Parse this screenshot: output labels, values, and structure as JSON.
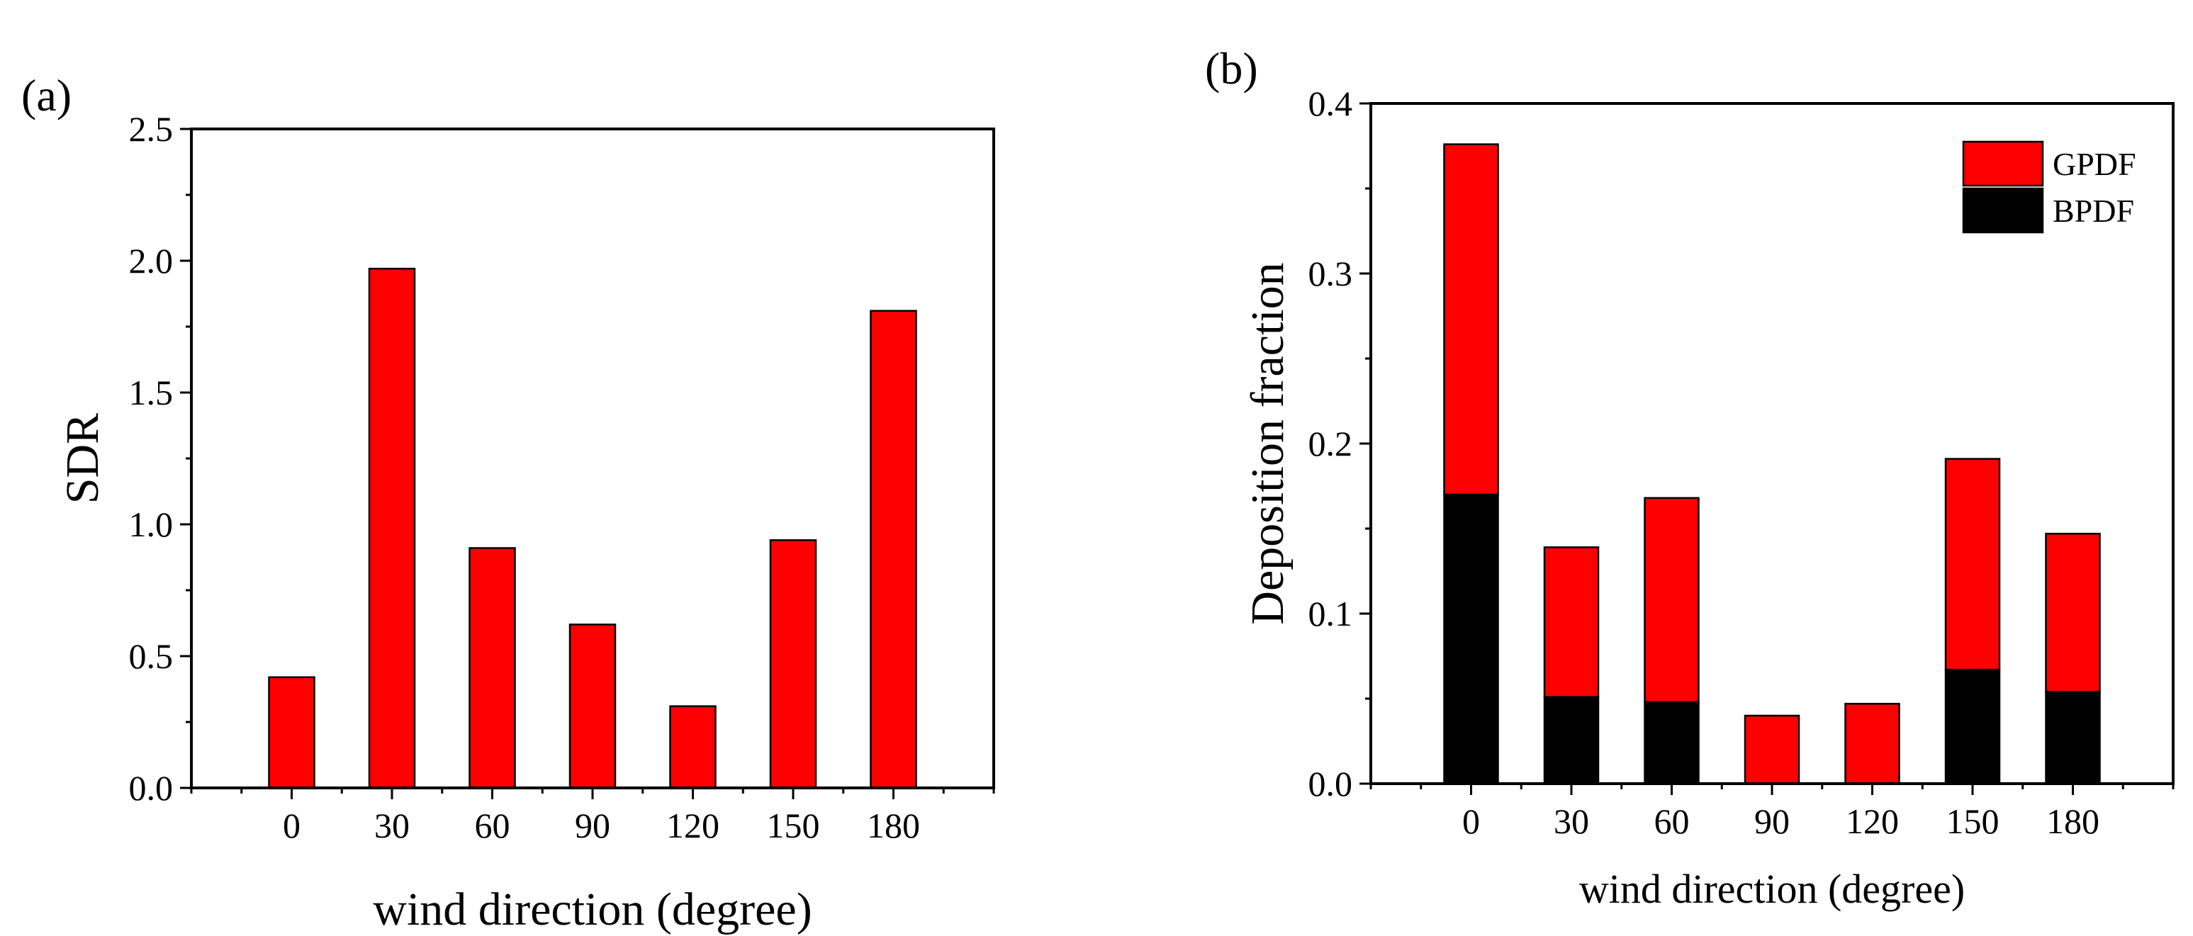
{
  "chart_data": [
    {
      "panel": "(a)",
      "type": "bar",
      "title": "",
      "xlabel": "wind direction (degree)",
      "ylabel": "SDR",
      "categories": [
        "0",
        "30",
        "60",
        "90",
        "120",
        "150",
        "180"
      ],
      "values": [
        0.42,
        1.97,
        0.91,
        0.62,
        0.31,
        0.94,
        1.81
      ],
      "ylim": [
        0,
        2.5
      ],
      "yticks": [
        "0.0",
        "0.5",
        "1.0",
        "1.5",
        "2.0",
        "2.5"
      ],
      "color": "#ff0000",
      "grid": false
    },
    {
      "panel": "(b)",
      "type": "bar",
      "stacked": true,
      "title": "",
      "xlabel": "wind direction (degree)",
      "ylabel": "Deposition fraction",
      "categories": [
        "0",
        "30",
        "60",
        "90",
        "120",
        "150",
        "180"
      ],
      "series": [
        {
          "name": "BPDF",
          "color": "#000000",
          "values": [
            0.17,
            0.051,
            0.048,
            0,
            0,
            0.067,
            0.054
          ]
        },
        {
          "name": "GPDF",
          "color": "#ff0000",
          "values": [
            0.206,
            0.088,
            0.12,
            0.04,
            0.047,
            0.124,
            0.093
          ]
        }
      ],
      "legend": [
        "GPDF",
        "BPDF"
      ],
      "legend_position": "top-right",
      "ylim": [
        0,
        0.4
      ],
      "yticks": [
        "0.0",
        "0.1",
        "0.2",
        "0.3",
        "0.4"
      ],
      "grid": false
    }
  ]
}
